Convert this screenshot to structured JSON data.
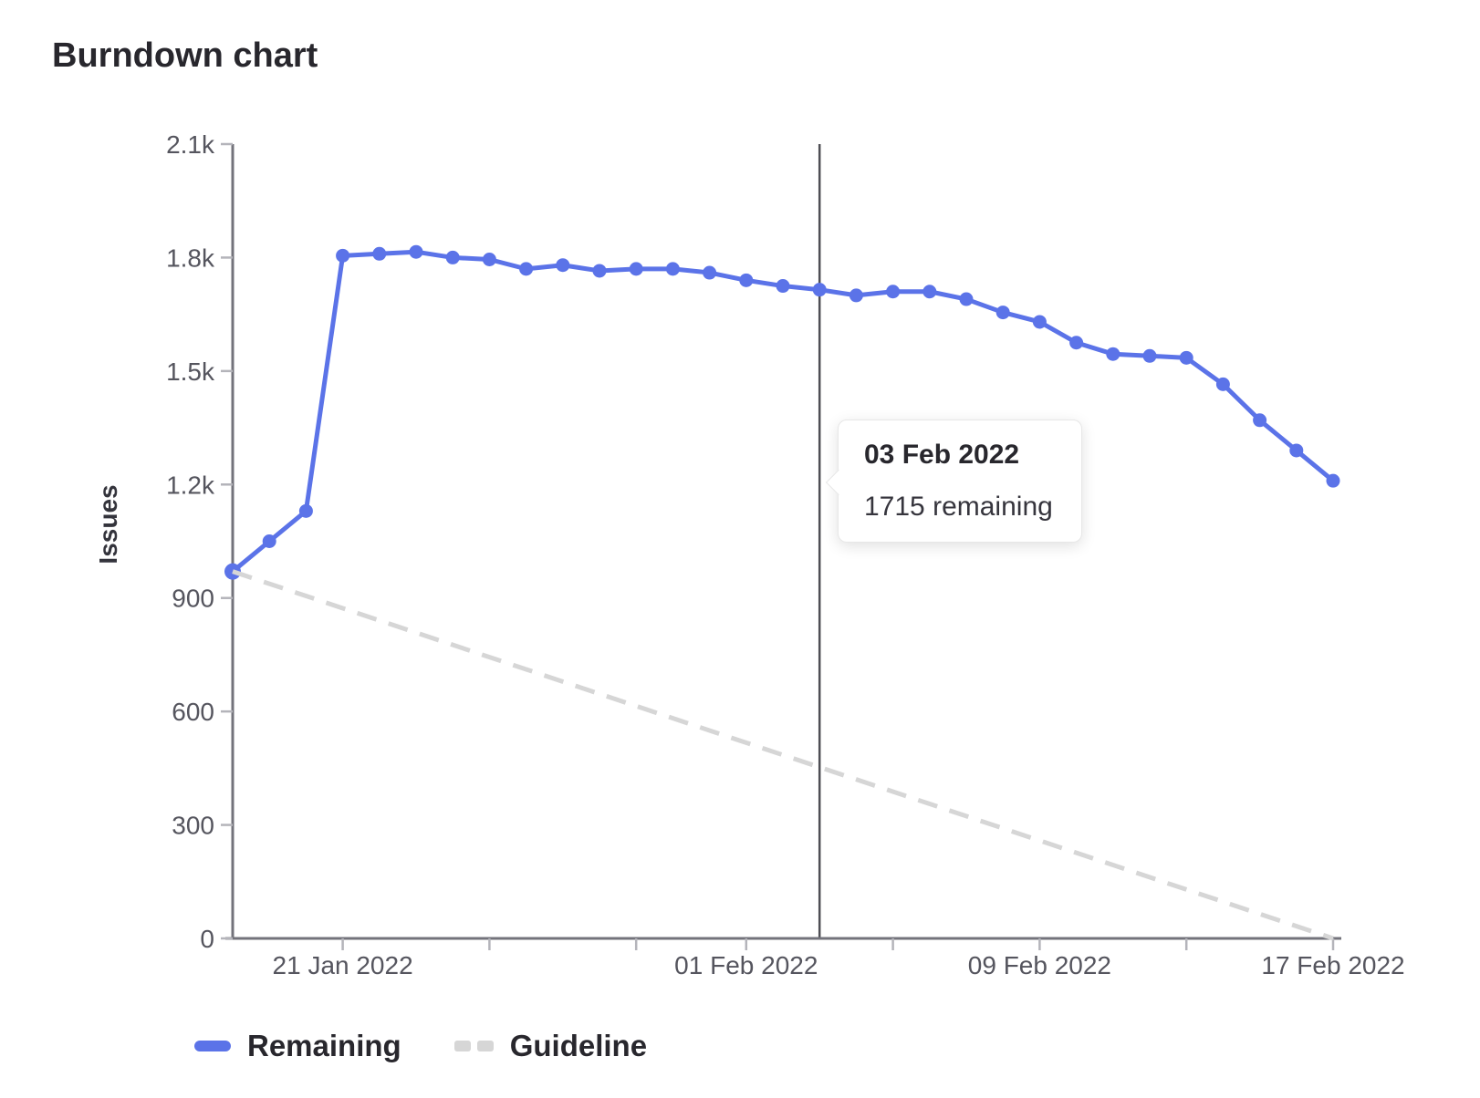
{
  "page": {
    "title": "Burndown chart"
  },
  "chart_data": {
    "type": "line",
    "title": "Burndown chart",
    "xlabel": "",
    "ylabel": "Issues",
    "ylim": [
      0,
      2100
    ],
    "grid": false,
    "legend_position": "bottom",
    "y_ticks": [
      {
        "value": 0,
        "label": "0"
      },
      {
        "value": 300,
        "label": "300"
      },
      {
        "value": 600,
        "label": "600"
      },
      {
        "value": 900,
        "label": "900"
      },
      {
        "value": 1200,
        "label": "1.2k"
      },
      {
        "value": 1500,
        "label": "1.5k"
      },
      {
        "value": 1800,
        "label": "1.8k"
      },
      {
        "value": 2100,
        "label": "2.1k"
      }
    ],
    "x_ticks": [
      {
        "date": "21 Jan 2022",
        "label": "21 Jan 2022"
      },
      {
        "date": "25 Jan 2022",
        "label": ""
      },
      {
        "date": "29 Jan 2022",
        "label": ""
      },
      {
        "date": "01 Feb 2022",
        "label": "01 Feb 2022"
      },
      {
        "date": "05 Feb 2022",
        "label": ""
      },
      {
        "date": "09 Feb 2022",
        "label": "09 Feb 2022"
      },
      {
        "date": "13 Feb 2022",
        "label": ""
      },
      {
        "date": "17 Feb 2022",
        "label": "17 Feb 2022"
      }
    ],
    "x": [
      "18 Jan 2022",
      "19 Jan 2022",
      "20 Jan 2022",
      "21 Jan 2022",
      "22 Jan 2022",
      "23 Jan 2022",
      "24 Jan 2022",
      "25 Jan 2022",
      "26 Jan 2022",
      "27 Jan 2022",
      "28 Jan 2022",
      "29 Jan 2022",
      "30 Jan 2022",
      "31 Jan 2022",
      "01 Feb 2022",
      "02 Feb 2022",
      "03 Feb 2022",
      "04 Feb 2022",
      "05 Feb 2022",
      "06 Feb 2022",
      "07 Feb 2022",
      "08 Feb 2022",
      "09 Feb 2022",
      "10 Feb 2022",
      "11 Feb 2022",
      "12 Feb 2022",
      "13 Feb 2022",
      "14 Feb 2022",
      "15 Feb 2022",
      "16 Feb 2022",
      "17 Feb 2022"
    ],
    "series": [
      {
        "name": "Remaining",
        "style": "solid",
        "color": "#5b73e8",
        "show_points": true,
        "values": [
          970,
          1050,
          1130,
          1805,
          1810,
          1815,
          1800,
          1795,
          1770,
          1780,
          1765,
          1770,
          1770,
          1760,
          1740,
          1725,
          1715,
          1700,
          1710,
          1710,
          1690,
          1655,
          1630,
          1575,
          1545,
          1540,
          1535,
          1465,
          1370,
          1290,
          1210
        ]
      },
      {
        "name": "Guideline",
        "style": "dashed",
        "color": "#d6d6d6",
        "show_points": false,
        "x": [
          "18 Jan 2022",
          "17 Feb 2022"
        ],
        "values": [
          970,
          0
        ]
      }
    ],
    "active_point": {
      "date": "03 Feb 2022",
      "value": 1715
    }
  },
  "tooltip": {
    "title": "03 Feb 2022",
    "body": "1715 remaining",
    "anchor_date": "03 Feb 2022"
  },
  "legend": {
    "items": [
      {
        "label": "Remaining",
        "color": "#5b73e8",
        "style": "solid"
      },
      {
        "label": "Guideline",
        "color": "#d6d6d6",
        "style": "dashed"
      }
    ]
  },
  "colors": {
    "series_blue": "#5b73e8",
    "guideline_gray": "#d6d6d6",
    "axis_line": "#73737b",
    "tick_mark": "#b4b4ba",
    "tick_label": "#55555e",
    "text_dark": "#28272d",
    "hover_line": "#4f4f55",
    "background": "#ffffff"
  }
}
